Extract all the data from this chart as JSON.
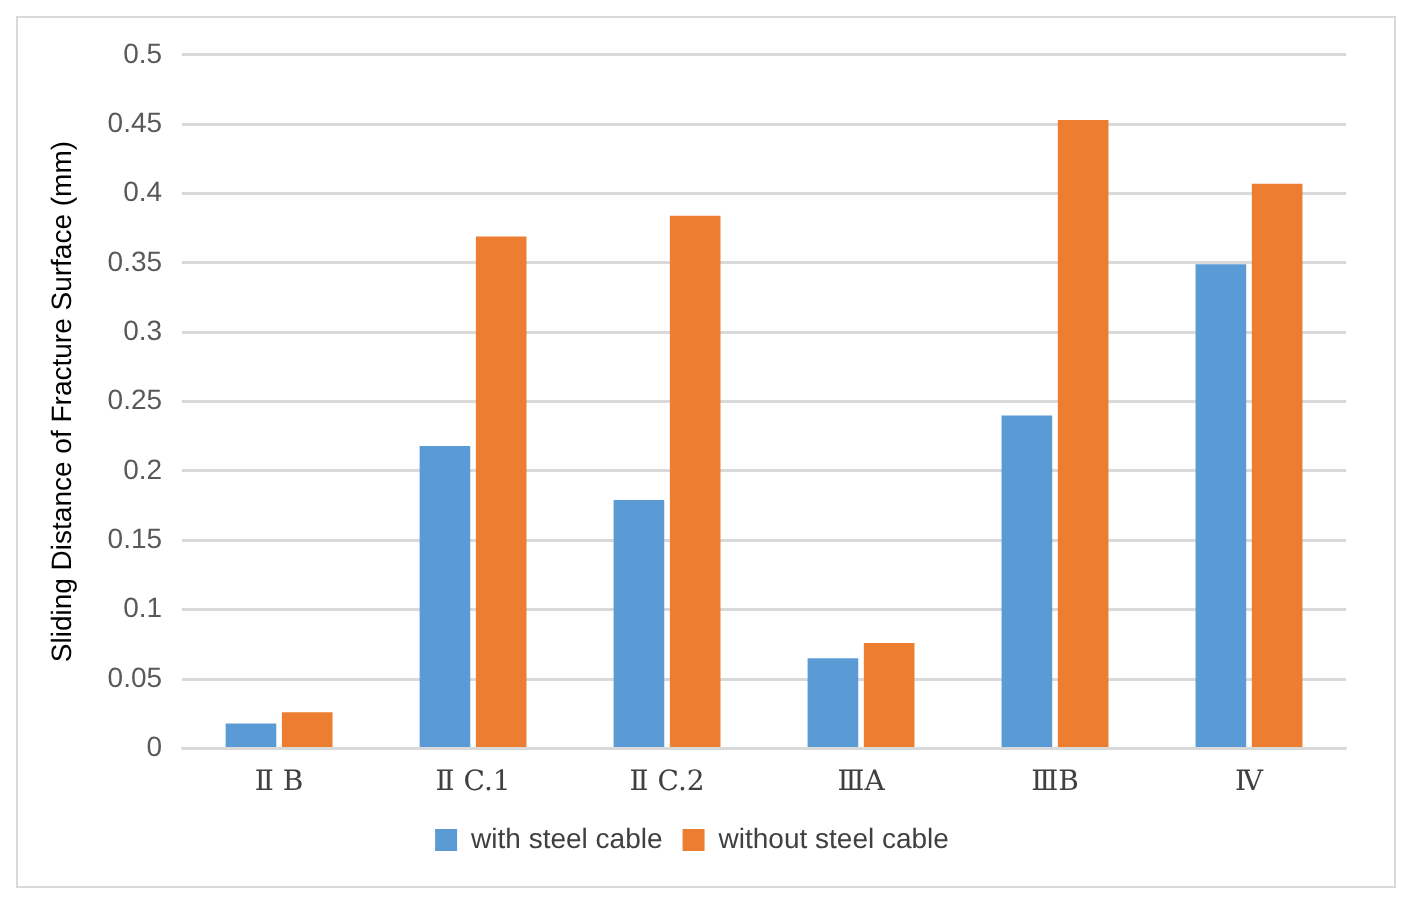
{
  "chart_data": {
    "type": "bar",
    "ylabel": "Sliding Distance of Fracture Surface (mm)",
    "categories": [
      "Ⅱ B",
      "Ⅱ C.1",
      "Ⅱ C.2",
      "ⅢA",
      "ⅢB",
      "Ⅳ"
    ],
    "series": [
      {
        "name": "with steel cable",
        "color": "#5b9bd5",
        "values": [
          0.018,
          0.218,
          0.179,
          0.065,
          0.24,
          0.349
        ]
      },
      {
        "name": "without steel cable",
        "color": "#ed7d31",
        "values": [
          0.026,
          0.369,
          0.384,
          0.076,
          0.453,
          0.407
        ]
      }
    ],
    "ylim": [
      0,
      0.5
    ],
    "yticks": [
      0,
      0.05,
      0.1,
      0.15,
      0.2,
      0.25,
      0.3,
      0.35,
      0.4,
      0.45,
      0.5
    ],
    "grid": "y",
    "legend": "bottom"
  }
}
